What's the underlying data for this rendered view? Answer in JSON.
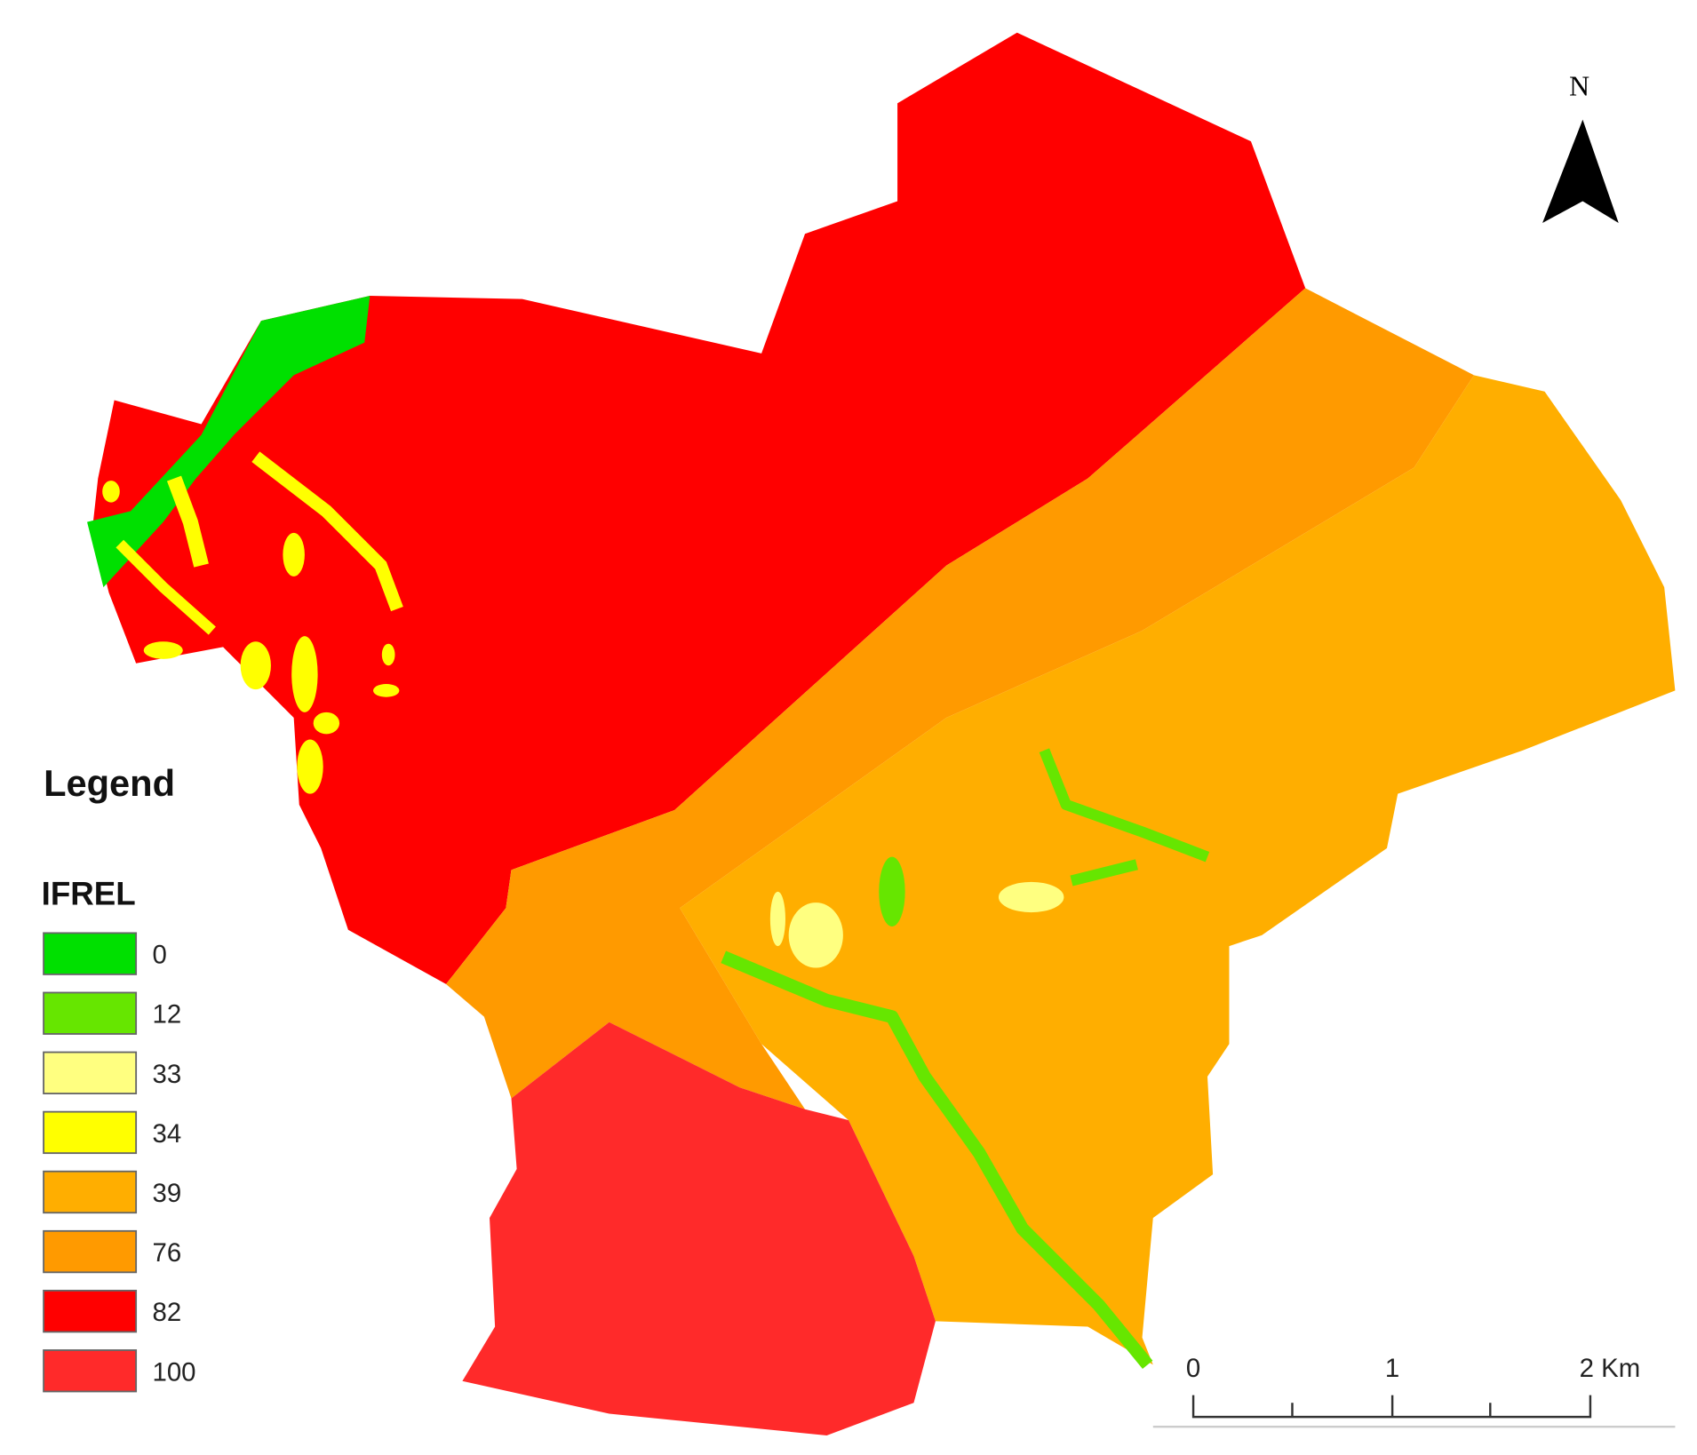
{
  "legend": {
    "title": "Legend",
    "field": "IFREL",
    "items": [
      {
        "value": 0,
        "color": "#00e000"
      },
      {
        "value": 12,
        "color": "#66e600"
      },
      {
        "value": 33,
        "color": "#ffff80"
      },
      {
        "value": 34,
        "color": "#ffff00"
      },
      {
        "value": 39,
        "color": "#ffae00"
      },
      {
        "value": 76,
        "color": "#ff9a00"
      },
      {
        "value": 82,
        "color": "#ff0000"
      },
      {
        "value": 100,
        "color": "#ff2a2a"
      }
    ]
  },
  "north_arrow": {
    "label": "N"
  },
  "scale_bar": {
    "labels": [
      "0",
      "1",
      "2 Km"
    ]
  }
}
